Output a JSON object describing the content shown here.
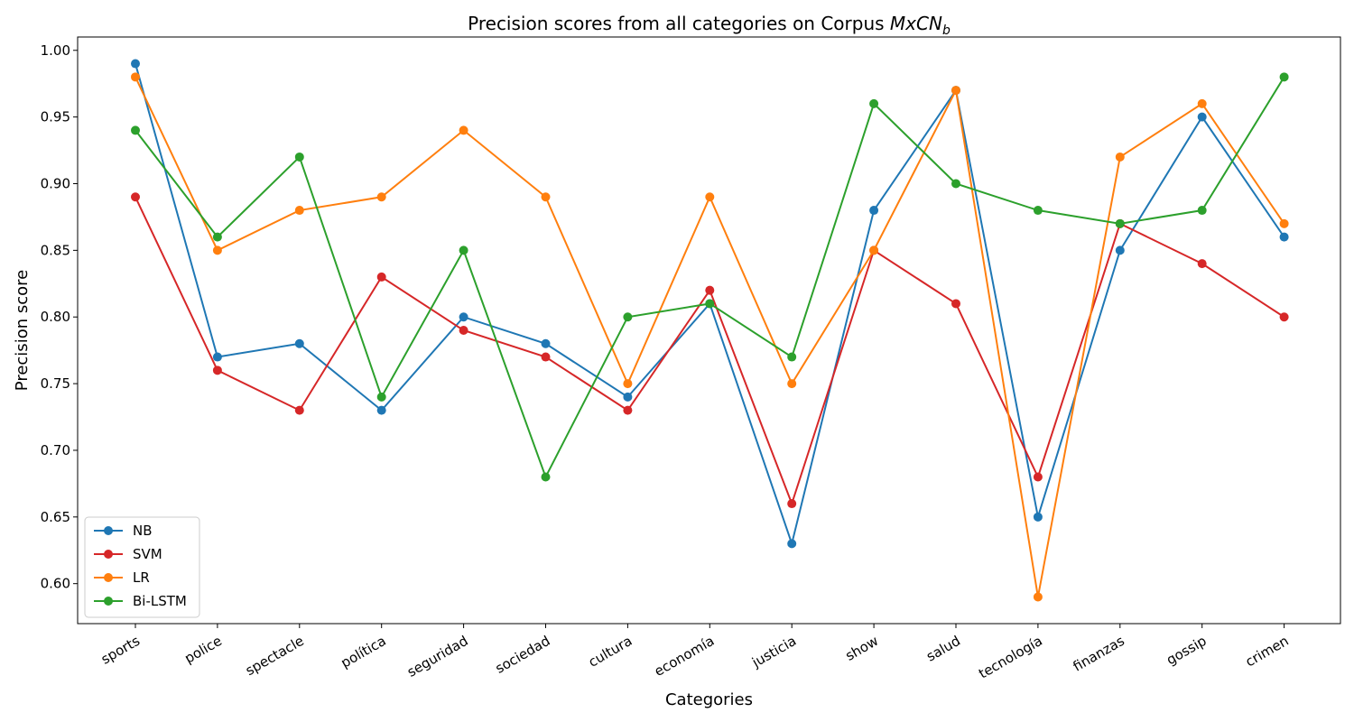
{
  "chart_data": {
    "type": "line",
    "title": "Precision scores from all categories on Corpus ",
    "title_math": "MxCN",
    "title_subscript": "b",
    "xlabel": "Categories",
    "ylabel": "Precision score",
    "ylim": [
      0.57,
      1.01
    ],
    "yticks": [
      "0.60",
      "0.65",
      "0.70",
      "0.75",
      "0.80",
      "0.85",
      "0.90",
      "0.95",
      "1.00"
    ],
    "grid": false,
    "legend_position": "lower-left",
    "categories": [
      "sports",
      "police",
      "spectacle",
      "política",
      "seguridad",
      "sociedad",
      "cultura",
      "economía",
      "justicia",
      "show",
      "salud",
      "tecnología",
      "finanzas",
      "gossip",
      "crimen"
    ],
    "series": [
      {
        "name": "NB",
        "color": "#1f77b4",
        "values": [
          0.99,
          0.77,
          0.78,
          0.73,
          0.8,
          0.78,
          0.74,
          0.81,
          0.63,
          0.88,
          0.97,
          0.65,
          0.85,
          0.95,
          0.86
        ]
      },
      {
        "name": "SVM",
        "color": "#d62728",
        "values": [
          0.89,
          0.76,
          0.73,
          0.83,
          0.79,
          0.77,
          0.73,
          0.82,
          0.66,
          0.85,
          0.81,
          0.68,
          0.87,
          0.84,
          0.8
        ]
      },
      {
        "name": "LR",
        "color": "#ff7f0e",
        "values": [
          0.98,
          0.85,
          0.88,
          0.89,
          0.94,
          0.89,
          0.75,
          0.89,
          0.75,
          0.85,
          0.97,
          0.59,
          0.92,
          0.96,
          0.87
        ]
      },
      {
        "name": "Bi-LSTM",
        "color": "#2ca02c",
        "values": [
          0.94,
          0.86,
          0.92,
          0.74,
          0.85,
          0.68,
          0.8,
          0.81,
          0.77,
          0.96,
          0.9,
          0.88,
          0.87,
          0.88,
          0.98
        ]
      }
    ]
  }
}
